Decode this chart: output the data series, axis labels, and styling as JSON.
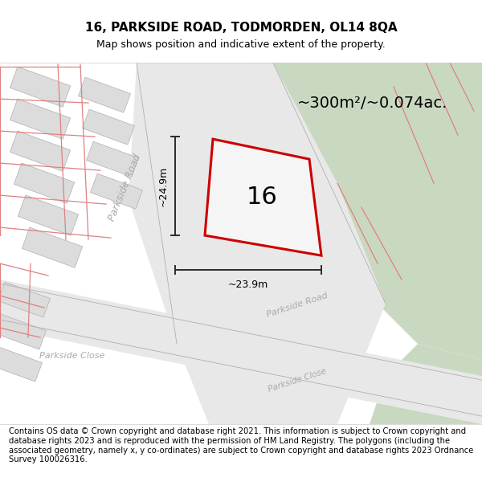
{
  "title_line1": "16, PARKSIDE ROAD, TODMORDEN, OL14 8QA",
  "title_line2": "Map shows position and indicative extent of the property.",
  "footer_text": "Contains OS data © Crown copyright and database right 2021. This information is subject to Crown copyright and database rights 2023 and is reproduced with the permission of HM Land Registry. The polygons (including the associated geometry, namely x, y co-ordinates) are subject to Crown copyright and database rights 2023 Ordnance Survey 100026316.",
  "area_label": "~300m²/~0.074ac.",
  "number_label": "16",
  "dim_vertical": "~24.9m",
  "dim_horizontal": "~23.9m",
  "road_label_pr_diag": "Parkside Road",
  "road_label_pr_lower": "Parkside Road",
  "road_label_pc_left": "Parkside Close",
  "road_label_pc_right": "Parkside Close",
  "bg_map_color": "#f2f2f2",
  "green_area_color": "#c9d9c1",
  "white_area_color": "#ffffff",
  "plot_outline_color": "#cc0000",
  "dim_line_color": "#2a2a2a",
  "road_line_color": "#e08080",
  "gray_line_color": "#b0b0b0",
  "title_fontsize": 11,
  "subtitle_fontsize": 9,
  "footer_fontsize": 7.2,
  "number_fontsize": 22,
  "area_fontsize": 14,
  "dim_fontsize": 9,
  "road_label_fontsize": 9,
  "road_label_color": "#aaaaaa"
}
